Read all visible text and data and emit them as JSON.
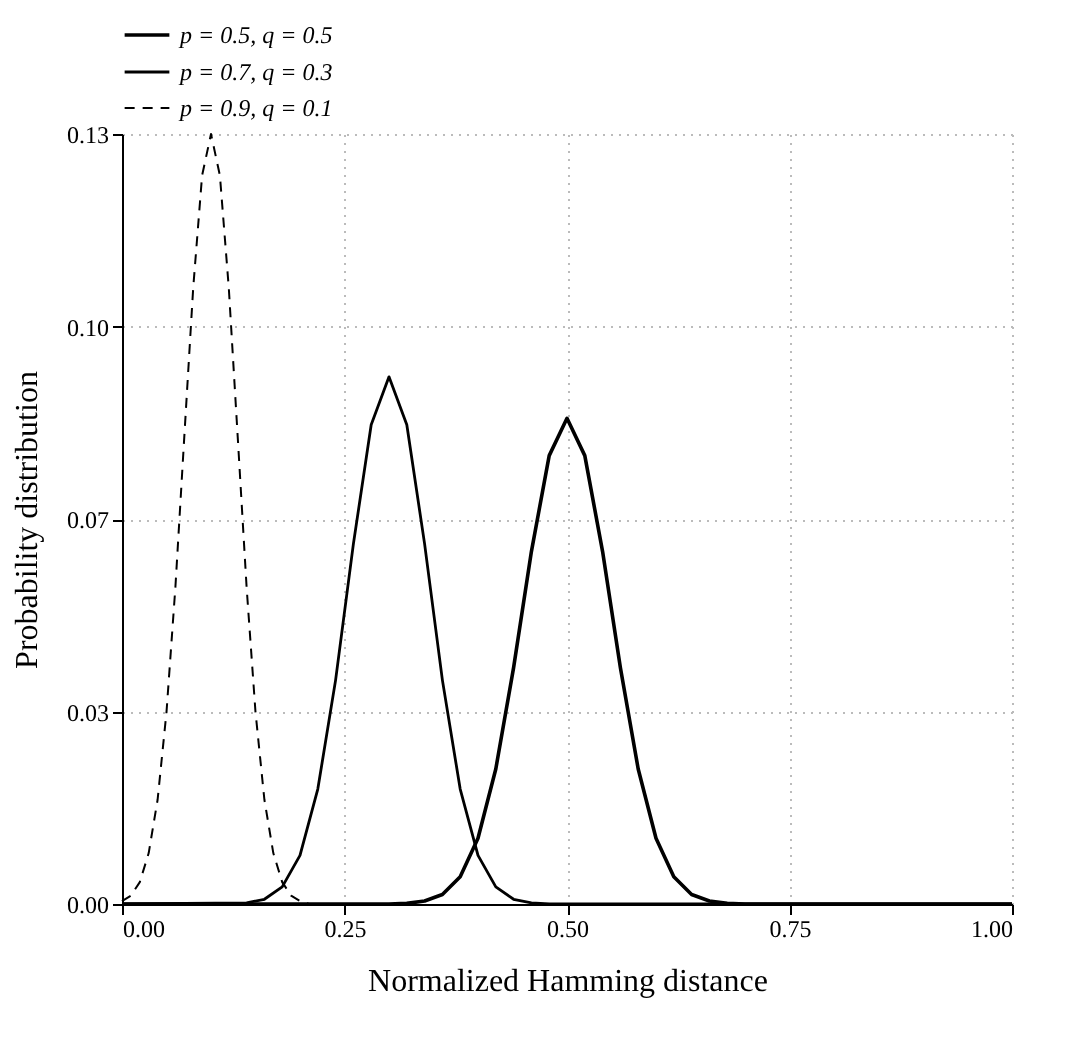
{
  "chart_data": {
    "type": "line",
    "xlabel": "Normalized Hamming distance",
    "ylabel": "Probability distribution",
    "xlim": [
      0,
      1
    ],
    "ylim": [
      0,
      0.13
    ],
    "xticks": [
      {
        "value": 0,
        "label": "0.00"
      },
      {
        "value": 0.25,
        "label": "0.25"
      },
      {
        "value": 0.5,
        "label": "0.50"
      },
      {
        "value": 0.75,
        "label": "0.75"
      },
      {
        "value": 1,
        "label": "1.00"
      }
    ],
    "yticks": [
      {
        "value": 0,
        "label": "0.00"
      },
      {
        "value": 0.0325,
        "label": "0.03"
      },
      {
        "value": 0.065,
        "label": "0.07"
      },
      {
        "value": 0.0975,
        "label": "0.10"
      },
      {
        "value": 0.13,
        "label": "0.13"
      }
    ],
    "grid": true,
    "legend": "top",
    "marker": "none",
    "series": [
      {
        "name": "p = 0.5, q = 0.5",
        "color": "#000000",
        "line_style": "solid",
        "x": [
          0,
          0.3,
          0.32,
          0.34,
          0.36,
          0.38,
          0.4,
          0.42,
          0.44,
          0.46,
          0.48,
          0.5,
          0.52,
          0.54,
          0.56,
          0.58,
          0.6,
          0.62,
          0.64,
          0.66,
          0.68,
          0.7,
          1
        ],
        "values": [
          0,
          0,
          0.0001,
          0.0005,
          0.0016,
          0.0046,
          0.0111,
          0.0228,
          0.0399,
          0.0595,
          0.0757,
          0.082,
          0.0757,
          0.0595,
          0.0399,
          0.0228,
          0.0111,
          0.0046,
          0.0016,
          0.0005,
          0.0001,
          0,
          0
        ]
      },
      {
        "name": "p = 0.7, q = 0.3",
        "color": "#000000",
        "line_style": "solid",
        "x": [
          0,
          0.14,
          0.16,
          0.18,
          0.2,
          0.22,
          0.24,
          0.26,
          0.28,
          0.3,
          0.32,
          0.34,
          0.36,
          0.38,
          0.4,
          0.42,
          0.44,
          0.46,
          0.48,
          1
        ],
        "values": [
          0,
          0.0002,
          0.0008,
          0.0029,
          0.0082,
          0.0194,
          0.0378,
          0.0608,
          0.0809,
          0.089,
          0.0809,
          0.0608,
          0.0378,
          0.0194,
          0.0082,
          0.0029,
          0.0008,
          0.0002,
          0,
          0
        ]
      },
      {
        "name": "p = 0.9, q = 0.1",
        "color": "#000000",
        "line_style": "dashed",
        "x": [
          0,
          0.01,
          0.02,
          0.03,
          0.04,
          0.05,
          0.06,
          0.07,
          0.08,
          0.09,
          0.1,
          0.11,
          0.12,
          0.13,
          0.14,
          0.15,
          0.16,
          0.17,
          0.18,
          0.19,
          0.2,
          0.21
        ],
        "values": [
          0.0005,
          0.0014,
          0.0037,
          0.0086,
          0.0176,
          0.0324,
          0.0535,
          0.0789,
          0.104,
          0.123,
          0.13,
          0.123,
          0.104,
          0.0789,
          0.0535,
          0.0324,
          0.0176,
          0.0086,
          0.0037,
          0.0014,
          0.0005,
          0
        ]
      }
    ]
  }
}
